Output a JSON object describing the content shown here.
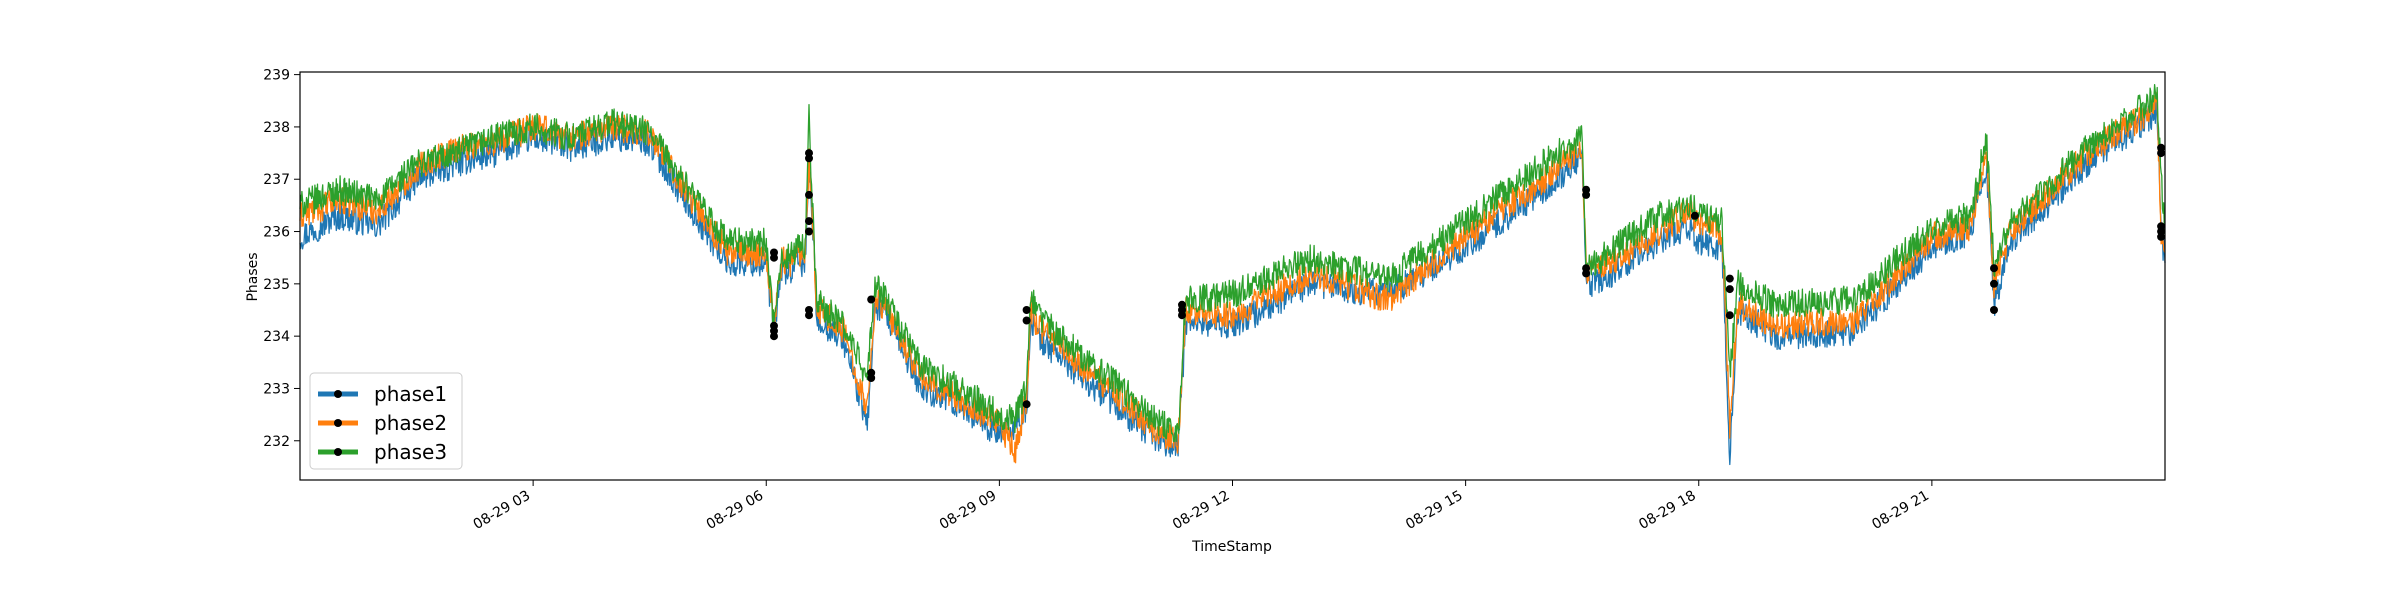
{
  "chart_data": {
    "type": "line",
    "title": "",
    "xlabel": "TimeStamp",
    "ylabel": "Phases",
    "x_range": [
      "08-29 00:00",
      "24:00"
    ],
    "ylim": [
      231.25,
      239.05
    ],
    "x_ticks": [
      {
        "label": "08-29 03",
        "hour": 3
      },
      {
        "label": "08-29 06",
        "hour": 6
      },
      {
        "label": "08-29 09",
        "hour": 9
      },
      {
        "label": "08-29 12",
        "hour": 12
      },
      {
        "label": "08-29 15",
        "hour": 15
      },
      {
        "label": "08-29 18",
        "hour": 18
      },
      {
        "label": "08-29 21",
        "hour": 21
      }
    ],
    "y_ticks": [
      232,
      233,
      234,
      235,
      236,
      237,
      238,
      239
    ],
    "grid": false,
    "legend_position": "lower-left",
    "legend_marker": "black dot",
    "series": [
      {
        "name": "phase1",
        "color": "#1f77b4",
        "x_hours": [
          0.0,
          0.5,
          1.0,
          1.5,
          2.0,
          2.5,
          3.0,
          3.5,
          4.0,
          4.5,
          5.0,
          5.5,
          6.0,
          6.1,
          6.2,
          6.3,
          6.4,
          6.5,
          6.55,
          6.6,
          6.65,
          6.7,
          7.0,
          7.3,
          7.4,
          7.5,
          8.0,
          8.5,
          9.0,
          9.2,
          9.35,
          9.4,
          9.5,
          10.0,
          10.5,
          11.0,
          11.3,
          11.4,
          12.0,
          13.0,
          14.0,
          15.0,
          16.0,
          16.5,
          16.55,
          16.6,
          17.0,
          17.5,
          17.9,
          18.0,
          18.3,
          18.4,
          18.5,
          19.0,
          20.0,
          21.0,
          21.5,
          21.7,
          21.8,
          22.0,
          23.0,
          23.9,
          23.95,
          24.0
        ],
        "values": [
          235.9,
          236.3,
          236.1,
          237.0,
          237.3,
          237.5,
          237.8,
          237.6,
          237.8,
          237.7,
          236.5,
          235.4,
          235.4,
          234.0,
          235.3,
          235.2,
          235.4,
          235.4,
          237.3,
          236.0,
          234.3,
          234.3,
          233.9,
          232.3,
          234.6,
          234.5,
          233.0,
          232.7,
          232.1,
          232.3,
          232.6,
          234.3,
          234.0,
          233.3,
          232.7,
          232.0,
          231.9,
          234.3,
          234.2,
          235.0,
          234.8,
          235.7,
          236.8,
          237.4,
          235.1,
          235.0,
          235.3,
          235.8,
          236.1,
          235.8,
          235.7,
          231.7,
          234.5,
          234.0,
          234.1,
          235.7,
          236.0,
          237.3,
          234.5,
          235.8,
          237.3,
          238.3,
          236.0,
          235.4
        ]
      },
      {
        "name": "phase2",
        "color": "#ff7f0e",
        "x_hours": [
          0.0,
          0.5,
          1.0,
          1.5,
          2.0,
          2.5,
          3.0,
          3.5,
          4.0,
          4.5,
          5.0,
          5.5,
          6.0,
          6.1,
          6.2,
          6.3,
          6.4,
          6.5,
          6.55,
          6.6,
          6.65,
          6.7,
          7.0,
          7.3,
          7.4,
          7.5,
          8.0,
          8.5,
          9.0,
          9.2,
          9.35,
          9.4,
          9.5,
          10.0,
          10.5,
          11.0,
          11.3,
          11.4,
          12.0,
          13.0,
          14.0,
          15.0,
          16.0,
          16.5,
          16.55,
          16.6,
          17.0,
          17.5,
          17.9,
          18.0,
          18.3,
          18.4,
          18.5,
          19.0,
          20.0,
          21.0,
          21.5,
          21.7,
          21.8,
          22.0,
          23.0,
          23.9,
          23.95,
          24.0
        ],
        "values": [
          236.3,
          236.6,
          236.4,
          237.2,
          237.6,
          237.7,
          238.0,
          237.8,
          238.0,
          237.9,
          236.7,
          235.6,
          235.6,
          234.2,
          235.5,
          235.4,
          235.6,
          235.6,
          237.4,
          236.2,
          234.5,
          234.5,
          234.1,
          232.6,
          234.7,
          234.6,
          233.2,
          232.8,
          232.3,
          231.8,
          232.8,
          234.5,
          234.2,
          233.5,
          232.9,
          232.2,
          232.0,
          234.5,
          234.4,
          235.2,
          234.7,
          235.9,
          237.0,
          237.6,
          235.3,
          235.2,
          235.5,
          236.0,
          236.4,
          236.1,
          236.0,
          232.3,
          234.6,
          234.2,
          234.3,
          235.9,
          236.1,
          237.5,
          235.0,
          236.0,
          237.5,
          238.4,
          235.9,
          235.6
        ]
      },
      {
        "name": "phase3",
        "color": "#2ca02c",
        "x_hours": [
          0.0,
          0.5,
          1.0,
          1.5,
          2.0,
          2.5,
          3.0,
          3.5,
          4.0,
          4.5,
          5.0,
          5.5,
          6.0,
          6.1,
          6.2,
          6.3,
          6.4,
          6.5,
          6.55,
          6.6,
          6.65,
          6.7,
          7.0,
          7.3,
          7.4,
          7.5,
          8.0,
          8.5,
          9.0,
          9.2,
          9.35,
          9.4,
          9.5,
          10.0,
          10.5,
          11.0,
          11.3,
          11.4,
          12.0,
          13.0,
          14.0,
          15.0,
          16.0,
          16.5,
          16.55,
          16.6,
          17.0,
          17.5,
          17.9,
          18.0,
          18.3,
          18.4,
          18.5,
          19.0,
          20.0,
          21.0,
          21.5,
          21.7,
          21.8,
          22.0,
          23.0,
          23.9,
          23.95,
          24.0
        ],
        "values": [
          236.5,
          236.8,
          236.6,
          237.3,
          237.5,
          237.8,
          238.0,
          237.8,
          238.1,
          237.9,
          236.8,
          235.8,
          235.8,
          234.1,
          235.6,
          235.5,
          235.7,
          235.7,
          238.3,
          236.3,
          234.6,
          234.6,
          234.2,
          233.2,
          235.0,
          234.8,
          233.4,
          233.0,
          232.5,
          232.4,
          233.0,
          234.8,
          234.4,
          233.7,
          233.1,
          232.4,
          232.2,
          234.7,
          234.8,
          235.5,
          235.1,
          236.2,
          237.3,
          237.8,
          235.4,
          235.3,
          235.8,
          236.3,
          236.5,
          236.3,
          236.2,
          233.3,
          235.0,
          234.6,
          234.7,
          236.1,
          236.3,
          237.8,
          235.3,
          236.2,
          237.6,
          238.6,
          237.0,
          236.0
        ]
      }
    ],
    "event_markers": [
      {
        "hour": 6.1,
        "values": [
          235.5,
          235.6,
          234.2,
          234.0,
          234.1
        ]
      },
      {
        "hour": 6.55,
        "values": [
          237.5,
          237.4,
          236.7,
          236.2,
          236.0,
          234.5,
          234.4
        ]
      },
      {
        "hour": 7.35,
        "values": [
          234.7,
          233.3,
          233.2
        ]
      },
      {
        "hour": 9.35,
        "values": [
          234.5,
          234.3,
          232.7
        ]
      },
      {
        "hour": 11.35,
        "values": [
          234.6,
          234.5,
          234.4
        ]
      },
      {
        "hour": 16.55,
        "values": [
          236.8,
          236.7,
          235.3,
          235.2
        ]
      },
      {
        "hour": 17.95,
        "values": [
          236.3
        ]
      },
      {
        "hour": 18.4,
        "values": [
          235.1,
          234.9,
          234.4
        ]
      },
      {
        "hour": 21.8,
        "values": [
          235.3,
          235.0,
          234.5
        ]
      },
      {
        "hour": 23.95,
        "values": [
          237.6,
          237.5,
          236.1,
          236.0,
          235.9
        ]
      }
    ]
  }
}
